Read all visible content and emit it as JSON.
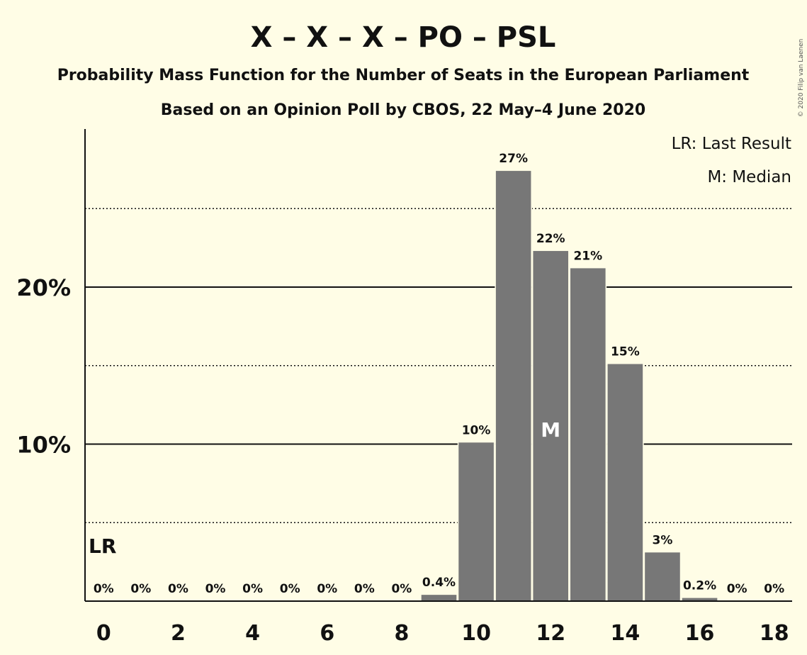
{
  "title": "X – X – X – PO – PSL",
  "subtitle1": "Probability Mass Function for the Number of Seats in the European Parliament",
  "subtitle2": "Based on an Opinion Poll by CBOS, 22 May–4 June 2020",
  "legend": {
    "lr": "LR: Last Result",
    "m": "M: Median"
  },
  "copyright": "© 2020 Filip van Laenen",
  "colors": {
    "background": "#fffde6",
    "bar": "#777777",
    "median_text": "#ffffff"
  },
  "chart_data": {
    "type": "bar",
    "title": "X – X – X – PO – PSL",
    "xlabel": "",
    "ylabel": "",
    "categories": [
      0,
      1,
      2,
      3,
      4,
      5,
      6,
      7,
      8,
      9,
      10,
      11,
      12,
      13,
      14,
      15,
      16,
      17,
      18
    ],
    "values": [
      0,
      0,
      0,
      0,
      0,
      0,
      0,
      0,
      0,
      0.4,
      10.1,
      27.4,
      22.3,
      21.2,
      15.1,
      3.1,
      0.2,
      0,
      0
    ],
    "data_labels": [
      "0%",
      "0%",
      "0%",
      "0%",
      "0%",
      "0%",
      "0%",
      "0%",
      "0%",
      "0.4%",
      "10%",
      "27%",
      "22%",
      "21%",
      "15%",
      "3%",
      "0.2%",
      "0%",
      "0%"
    ],
    "x_tick_labels": [
      "0",
      "2",
      "4",
      "6",
      "8",
      "10",
      "12",
      "14",
      "16",
      "18"
    ],
    "y_tick_labels": [
      "10%",
      "20%"
    ],
    "ylim": [
      0,
      30
    ],
    "last_result_seat": 0,
    "last_result_label": "LR",
    "median_seat": 12,
    "median_label": "M",
    "gridlines": {
      "solid": [
        10,
        20
      ],
      "dotted": [
        5,
        15,
        25
      ]
    },
    "legend_position": "top-right"
  }
}
